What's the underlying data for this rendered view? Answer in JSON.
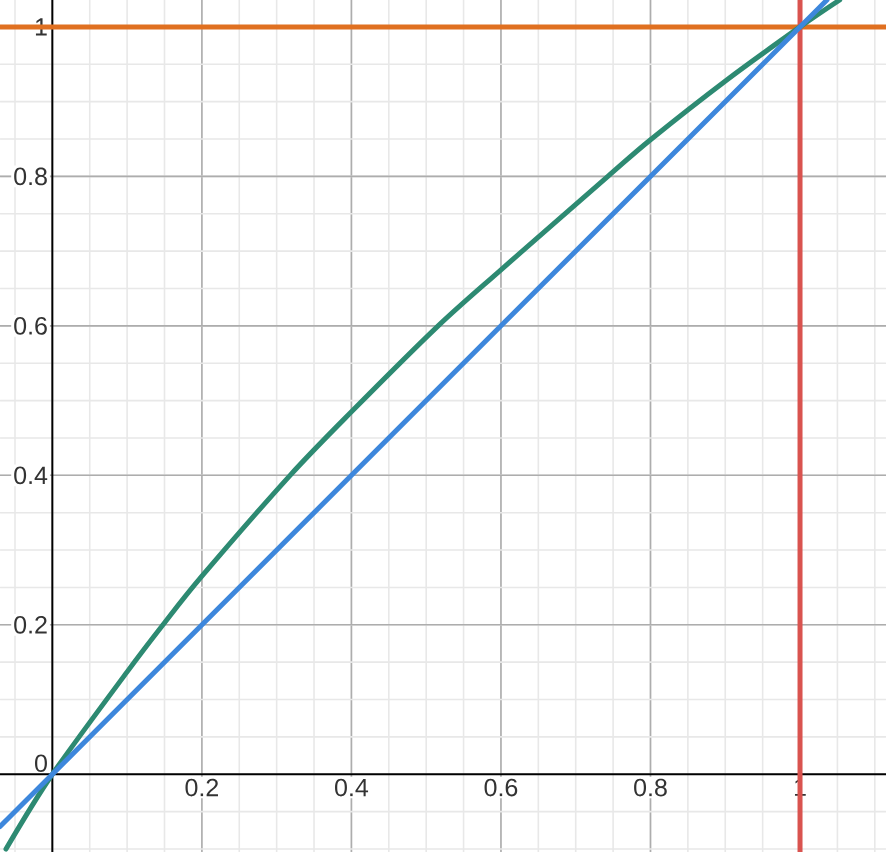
{
  "chart_data": {
    "type": "line",
    "series": [
      {
        "color": "#2d8a72",
        "x": [
          -0.062,
          0,
          0.1,
          0.148,
          0.2,
          0.318,
          0.4,
          0.516,
          0.6,
          0.743,
          0.8,
          0.902,
          1,
          1.053
        ],
        "values": [
          -0.1,
          0,
          0.137,
          0.2,
          0.265,
          0.4,
          0.485,
          0.6,
          0.675,
          0.8,
          0.849,
          0.929,
          1,
          1.036
        ]
      },
      {
        "color": "#3d87dc",
        "x": [
          -0.07,
          1.036
        ],
        "values": [
          -0.07,
          1.036
        ]
      }
    ],
    "xlim": [
      -0.07,
      1.115
    ],
    "ylim": [
      -0.104,
      1.036
    ],
    "xticks": [
      0.2,
      0.4,
      0.6,
      0.8,
      1
    ],
    "yticks": [
      0,
      0.2,
      0.4,
      0.6,
      0.8,
      1
    ],
    "grid": true,
    "marker": "none",
    "line_style": "solid",
    "ref_lines": [
      {
        "axis": "y",
        "value": 1,
        "color": "#e07020"
      },
      {
        "axis": "x",
        "value": 1,
        "color": "#d9534f"
      }
    ]
  }
}
